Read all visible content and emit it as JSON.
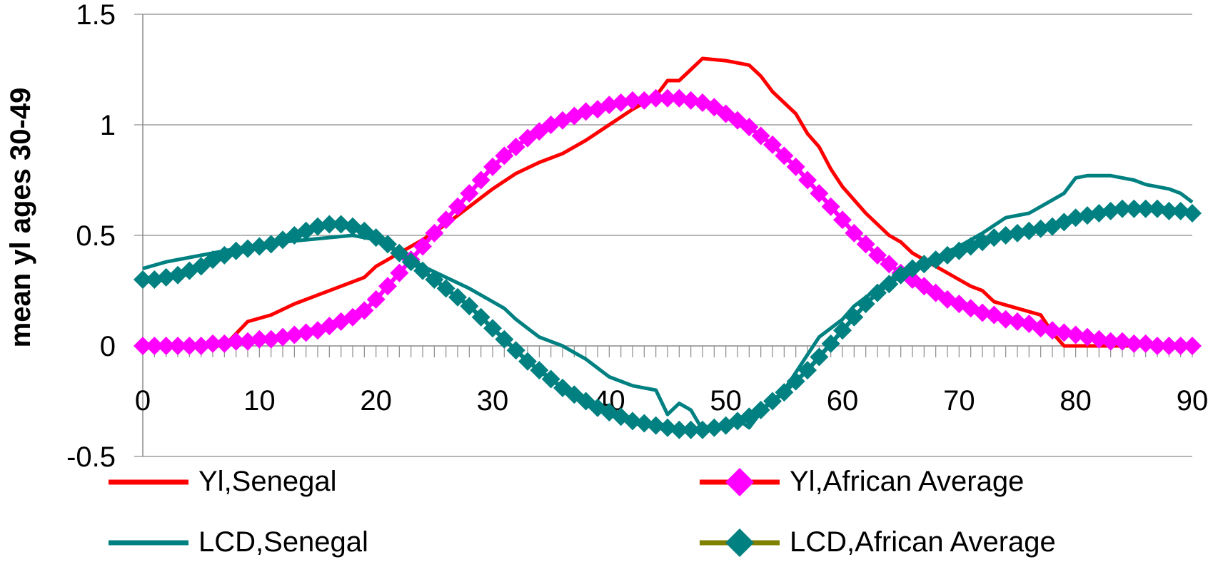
{
  "chart_data": {
    "type": "line",
    "title": "",
    "xlabel": "",
    "ylabel": "mean yl ages 30-49",
    "xlim": [
      0,
      90
    ],
    "ylim": [
      -0.5,
      1.5
    ],
    "x_ticks": [
      "0",
      "10",
      "20",
      "30",
      "40",
      "50",
      "60",
      "70",
      "80",
      "90"
    ],
    "y_ticks": [
      "1.5",
      "1",
      "0.5",
      "0",
      "-0.5"
    ],
    "grid": "horizontal",
    "legend_position": "bottom",
    "series": [
      {
        "name": "Yl,Senegal",
        "color": "#ff0000",
        "marker": "none",
        "points": [
          [
            0,
            0
          ],
          [
            7,
            0
          ],
          [
            9,
            0.11
          ],
          [
            11,
            0.14
          ],
          [
            13,
            0.19
          ],
          [
            15,
            0.23
          ],
          [
            17,
            0.27
          ],
          [
            19,
            0.31
          ],
          [
            20,
            0.36
          ],
          [
            22,
            0.42
          ],
          [
            24,
            0.48
          ],
          [
            26,
            0.55
          ],
          [
            28,
            0.63
          ],
          [
            30,
            0.71
          ],
          [
            32,
            0.78
          ],
          [
            34,
            0.83
          ],
          [
            36,
            0.87
          ],
          [
            38,
            0.93
          ],
          [
            40,
            1.0
          ],
          [
            42,
            1.07
          ],
          [
            44,
            1.13
          ],
          [
            45,
            1.2
          ],
          [
            46,
            1.2
          ],
          [
            47,
            1.25
          ],
          [
            48,
            1.3
          ],
          [
            50,
            1.29
          ],
          [
            51,
            1.28
          ],
          [
            52,
            1.27
          ],
          [
            53,
            1.22
          ],
          [
            54,
            1.15
          ],
          [
            56,
            1.05
          ],
          [
            57,
            0.96
          ],
          [
            58,
            0.9
          ],
          [
            59,
            0.8
          ],
          [
            60,
            0.72
          ],
          [
            62,
            0.6
          ],
          [
            64,
            0.5
          ],
          [
            65,
            0.47
          ],
          [
            66,
            0.42
          ],
          [
            68,
            0.36
          ],
          [
            70,
            0.3
          ],
          [
            71,
            0.27
          ],
          [
            72,
            0.25
          ],
          [
            73,
            0.2
          ],
          [
            75,
            0.17
          ],
          [
            77,
            0.14
          ],
          [
            78,
            0.06
          ],
          [
            79,
            0.0
          ],
          [
            90,
            0.0
          ]
        ]
      },
      {
        "name": "Yl,African Average",
        "color": "#ff00ff",
        "line_color": "#ff0000",
        "marker": "diamond",
        "points": [
          [
            0,
            0
          ],
          [
            1,
            0
          ],
          [
            2,
            0
          ],
          [
            3,
            0
          ],
          [
            4,
            0
          ],
          [
            5,
            0
          ],
          [
            6,
            0.01
          ],
          [
            7,
            0.01
          ],
          [
            8,
            0.02
          ],
          [
            9,
            0.02
          ],
          [
            10,
            0.03
          ],
          [
            11,
            0.03
          ],
          [
            12,
            0.04
          ],
          [
            13,
            0.05
          ],
          [
            14,
            0.06
          ],
          [
            15,
            0.07
          ],
          [
            16,
            0.09
          ],
          [
            17,
            0.11
          ],
          [
            18,
            0.13
          ],
          [
            19,
            0.16
          ],
          [
            20,
            0.21
          ],
          [
            21,
            0.27
          ],
          [
            22,
            0.33
          ],
          [
            23,
            0.39
          ],
          [
            24,
            0.45
          ],
          [
            25,
            0.51
          ],
          [
            26,
            0.57
          ],
          [
            27,
            0.63
          ],
          [
            28,
            0.69
          ],
          [
            29,
            0.75
          ],
          [
            30,
            0.81
          ],
          [
            31,
            0.86
          ],
          [
            32,
            0.9
          ],
          [
            33,
            0.94
          ],
          [
            34,
            0.97
          ],
          [
            35,
            1.0
          ],
          [
            36,
            1.02
          ],
          [
            37,
            1.04
          ],
          [
            38,
            1.06
          ],
          [
            39,
            1.07
          ],
          [
            40,
            1.09
          ],
          [
            41,
            1.1
          ],
          [
            42,
            1.11
          ],
          [
            43,
            1.11
          ],
          [
            44,
            1.12
          ],
          [
            45,
            1.12
          ],
          [
            46,
            1.12
          ],
          [
            47,
            1.11
          ],
          [
            48,
            1.1
          ],
          [
            49,
            1.08
          ],
          [
            50,
            1.05
          ],
          [
            51,
            1.02
          ],
          [
            52,
            0.99
          ],
          [
            53,
            0.95
          ],
          [
            54,
            0.91
          ],
          [
            55,
            0.86
          ],
          [
            56,
            0.81
          ],
          [
            57,
            0.75
          ],
          [
            58,
            0.69
          ],
          [
            59,
            0.63
          ],
          [
            60,
            0.57
          ],
          [
            61,
            0.51
          ],
          [
            62,
            0.46
          ],
          [
            63,
            0.41
          ],
          [
            64,
            0.37
          ],
          [
            65,
            0.33
          ],
          [
            66,
            0.3
          ],
          [
            67,
            0.27
          ],
          [
            68,
            0.24
          ],
          [
            69,
            0.21
          ],
          [
            70,
            0.19
          ],
          [
            71,
            0.17
          ],
          [
            72,
            0.15
          ],
          [
            73,
            0.14
          ],
          [
            74,
            0.12
          ],
          [
            75,
            0.11
          ],
          [
            76,
            0.1
          ],
          [
            77,
            0.08
          ],
          [
            78,
            0.07
          ],
          [
            79,
            0.06
          ],
          [
            80,
            0.05
          ],
          [
            81,
            0.04
          ],
          [
            82,
            0.03
          ],
          [
            83,
            0.02
          ],
          [
            84,
            0.02
          ],
          [
            85,
            0.01
          ],
          [
            86,
            0.01
          ],
          [
            87,
            0.0
          ],
          [
            88,
            0.0
          ],
          [
            89,
            0.0
          ],
          [
            90,
            0.0
          ]
        ]
      },
      {
        "name": "LCD,Senegal",
        "color": "#008080",
        "marker": "none",
        "points": [
          [
            0,
            0.35
          ],
          [
            2,
            0.38
          ],
          [
            4,
            0.4
          ],
          [
            6,
            0.42
          ],
          [
            8,
            0.44
          ],
          [
            10,
            0.45
          ],
          [
            12,
            0.47
          ],
          [
            14,
            0.48
          ],
          [
            16,
            0.49
          ],
          [
            18,
            0.5
          ],
          [
            20,
            0.48
          ],
          [
            22,
            0.42
          ],
          [
            24,
            0.36
          ],
          [
            26,
            0.31
          ],
          [
            28,
            0.26
          ],
          [
            30,
            0.2
          ],
          [
            31,
            0.17
          ],
          [
            32,
            0.12
          ],
          [
            33,
            0.08
          ],
          [
            34,
            0.04
          ],
          [
            35,
            0.02
          ],
          [
            36,
            0.0
          ],
          [
            37,
            -0.03
          ],
          [
            38,
            -0.06
          ],
          [
            39,
            -0.1
          ],
          [
            40,
            -0.14
          ],
          [
            41,
            -0.16
          ],
          [
            42,
            -0.18
          ],
          [
            43,
            -0.19
          ],
          [
            44,
            -0.2
          ],
          [
            45,
            -0.31
          ],
          [
            46,
            -0.26
          ],
          [
            47,
            -0.29
          ],
          [
            48,
            -0.38
          ],
          [
            49,
            -0.37
          ],
          [
            50,
            -0.35
          ],
          [
            51,
            -0.33
          ],
          [
            52,
            -0.37
          ],
          [
            53,
            -0.3
          ],
          [
            54,
            -0.25
          ],
          [
            55,
            -0.2
          ],
          [
            56,
            -0.12
          ],
          [
            57,
            -0.04
          ],
          [
            58,
            0.04
          ],
          [
            60,
            0.12
          ],
          [
            61,
            0.18
          ],
          [
            62,
            0.22
          ],
          [
            63,
            0.26
          ],
          [
            64,
            0.3
          ],
          [
            65,
            0.33
          ],
          [
            66,
            0.36
          ],
          [
            68,
            0.4
          ],
          [
            70,
            0.45
          ],
          [
            72,
            0.51
          ],
          [
            74,
            0.58
          ],
          [
            76,
            0.6
          ],
          [
            78,
            0.66
          ],
          [
            79,
            0.69
          ],
          [
            80,
            0.76
          ],
          [
            81,
            0.77
          ],
          [
            82,
            0.77
          ],
          [
            83,
            0.77
          ],
          [
            84,
            0.76
          ],
          [
            85,
            0.75
          ],
          [
            86,
            0.73
          ],
          [
            87,
            0.72
          ],
          [
            88,
            0.71
          ],
          [
            89,
            0.69
          ],
          [
            90,
            0.65
          ]
        ]
      },
      {
        "name": "LCD,African Average",
        "color": "#008080",
        "line_color": "#808000",
        "marker": "diamond",
        "points": [
          [
            0,
            0.3
          ],
          [
            1,
            0.3
          ],
          [
            2,
            0.31
          ],
          [
            3,
            0.32
          ],
          [
            4,
            0.34
          ],
          [
            5,
            0.36
          ],
          [
            6,
            0.39
          ],
          [
            7,
            0.41
          ],
          [
            8,
            0.43
          ],
          [
            9,
            0.44
          ],
          [
            10,
            0.45
          ],
          [
            11,
            0.46
          ],
          [
            12,
            0.48
          ],
          [
            13,
            0.5
          ],
          [
            14,
            0.52
          ],
          [
            15,
            0.54
          ],
          [
            16,
            0.55
          ],
          [
            17,
            0.55
          ],
          [
            18,
            0.54
          ],
          [
            19,
            0.52
          ],
          [
            20,
            0.49
          ],
          [
            21,
            0.46
          ],
          [
            22,
            0.42
          ],
          [
            23,
            0.38
          ],
          [
            24,
            0.34
          ],
          [
            25,
            0.3
          ],
          [
            26,
            0.26
          ],
          [
            27,
            0.22
          ],
          [
            28,
            0.18
          ],
          [
            29,
            0.13
          ],
          [
            30,
            0.08
          ],
          [
            31,
            0.03
          ],
          [
            32,
            -0.02
          ],
          [
            33,
            -0.07
          ],
          [
            34,
            -0.11
          ],
          [
            35,
            -0.15
          ],
          [
            36,
            -0.19
          ],
          [
            37,
            -0.22
          ],
          [
            38,
            -0.25
          ],
          [
            39,
            -0.28
          ],
          [
            40,
            -0.3
          ],
          [
            41,
            -0.32
          ],
          [
            42,
            -0.34
          ],
          [
            43,
            -0.35
          ],
          [
            44,
            -0.36
          ],
          [
            45,
            -0.37
          ],
          [
            46,
            -0.38
          ],
          [
            47,
            -0.38
          ],
          [
            48,
            -0.38
          ],
          [
            49,
            -0.37
          ],
          [
            50,
            -0.36
          ],
          [
            51,
            -0.34
          ],
          [
            52,
            -0.32
          ],
          [
            53,
            -0.29
          ],
          [
            54,
            -0.25
          ],
          [
            55,
            -0.21
          ],
          [
            56,
            -0.16
          ],
          [
            57,
            -0.11
          ],
          [
            58,
            -0.05
          ],
          [
            59,
            0.01
          ],
          [
            60,
            0.07
          ],
          [
            61,
            0.13
          ],
          [
            62,
            0.19
          ],
          [
            63,
            0.24
          ],
          [
            64,
            0.28
          ],
          [
            65,
            0.32
          ],
          [
            66,
            0.35
          ],
          [
            67,
            0.37
          ],
          [
            68,
            0.39
          ],
          [
            69,
            0.41
          ],
          [
            70,
            0.43
          ],
          [
            71,
            0.45
          ],
          [
            72,
            0.47
          ],
          [
            73,
            0.49
          ],
          [
            74,
            0.5
          ],
          [
            75,
            0.51
          ],
          [
            76,
            0.52
          ],
          [
            77,
            0.53
          ],
          [
            78,
            0.54
          ],
          [
            79,
            0.56
          ],
          [
            80,
            0.58
          ],
          [
            81,
            0.59
          ],
          [
            82,
            0.6
          ],
          [
            83,
            0.61
          ],
          [
            84,
            0.62
          ],
          [
            85,
            0.62
          ],
          [
            86,
            0.62
          ],
          [
            87,
            0.62
          ],
          [
            88,
            0.61
          ],
          [
            89,
            0.61
          ],
          [
            90,
            0.6
          ]
        ]
      }
    ]
  }
}
